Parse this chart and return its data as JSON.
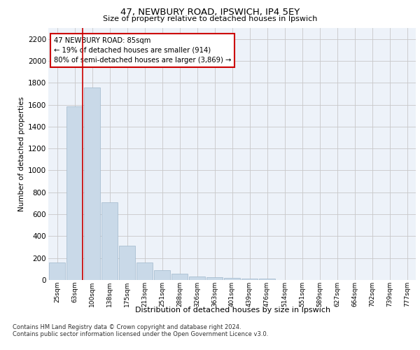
{
  "title1": "47, NEWBURY ROAD, IPSWICH, IP4 5EY",
  "title2": "Size of property relative to detached houses in Ipswich",
  "xlabel": "Distribution of detached houses by size in Ipswich",
  "ylabel": "Number of detached properties",
  "categories": [
    "25sqm",
    "63sqm",
    "100sqm",
    "138sqm",
    "175sqm",
    "213sqm",
    "251sqm",
    "288sqm",
    "326sqm",
    "363sqm",
    "401sqm",
    "439sqm",
    "476sqm",
    "514sqm",
    "551sqm",
    "589sqm",
    "627sqm",
    "664sqm",
    "702sqm",
    "739sqm",
    "777sqm"
  ],
  "values": [
    160,
    1585,
    1755,
    710,
    315,
    160,
    90,
    55,
    35,
    25,
    20,
    15,
    15,
    0,
    0,
    0,
    0,
    0,
    0,
    0,
    0
  ],
  "bar_color": "#c9d9e8",
  "bar_edge_color": "#a0b8cc",
  "grid_color": "#c8c8c8",
  "bg_color": "#edf2f9",
  "vline_color": "#cc0000",
  "annotation_title": "47 NEWBURY ROAD: 85sqm",
  "annotation_line1": "← 19% of detached houses are smaller (914)",
  "annotation_line2": "80% of semi-detached houses are larger (3,869) →",
  "annotation_box_color": "white",
  "annotation_box_edge": "#cc0000",
  "ylim": [
    0,
    2300
  ],
  "yticks": [
    0,
    200,
    400,
    600,
    800,
    1000,
    1200,
    1400,
    1600,
    1800,
    2000,
    2200
  ],
  "footer1": "Contains HM Land Registry data © Crown copyright and database right 2024.",
  "footer2": "Contains public sector information licensed under the Open Government Licence v3.0."
}
